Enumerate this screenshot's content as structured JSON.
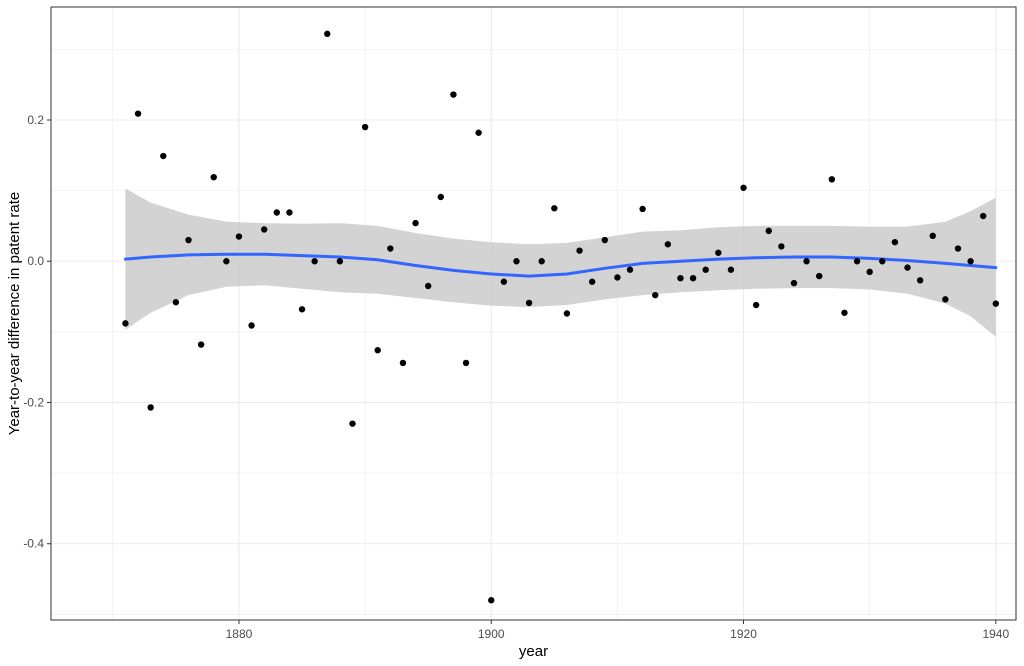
{
  "chart_data": {
    "type": "scatter",
    "title": "",
    "xlabel": "year",
    "ylabel": "Year-to-year difference in patent rate",
    "xlim": [
      1865.1,
      1941.6
    ],
    "ylim": [
      -0.508,
      0.36
    ],
    "x_ticks": [
      1880,
      1900,
      1920,
      1940
    ],
    "y_ticks": [
      -0.4,
      -0.2,
      0.0,
      0.2
    ],
    "x_tick_labels": [
      "1880",
      "1900",
      "1920",
      "1940"
    ],
    "y_tick_labels": [
      "-0.4",
      "-0.2",
      "0.0",
      "0.2"
    ],
    "grid": true,
    "legend": "none",
    "colors": {
      "points": "#000000",
      "smooth_line": "#3366ff",
      "confidence_band": "#c8c8c8",
      "grid": "#ebebeb",
      "panel_border": "#333333"
    },
    "points": {
      "x": [
        1871,
        1872,
        1873,
        1874,
        1875,
        1876,
        1877,
        1878,
        1879,
        1880,
        1881,
        1882,
        1883,
        1884,
        1885,
        1886,
        1887,
        1888,
        1889,
        1890,
        1891,
        1892,
        1893,
        1894,
        1895,
        1896,
        1897,
        1898,
        1899,
        1900,
        1901,
        1902,
        1903,
        1904,
        1905,
        1906,
        1907,
        1908,
        1909,
        1910,
        1911,
        1912,
        1913,
        1914,
        1915,
        1916,
        1917,
        1918,
        1919,
        1920,
        1921,
        1922,
        1923,
        1924,
        1925,
        1926,
        1927,
        1928,
        1929,
        1930,
        1931,
        1932,
        1933,
        1934,
        1935,
        1936,
        1937,
        1938,
        1939,
        1940
      ],
      "y": [
        -0.088,
        0.209,
        -0.207,
        0.149,
        -0.058,
        0.03,
        -0.118,
        0.119,
        0.0,
        0.035,
        -0.091,
        0.045,
        0.069,
        0.069,
        -0.068,
        0.0,
        0.322,
        0.0,
        -0.23,
        0.19,
        -0.126,
        0.018,
        -0.144,
        0.054,
        -0.035,
        0.091,
        0.236,
        -0.144,
        0.182,
        -0.48,
        -0.029,
        0.0,
        -0.059,
        0.0,
        0.075,
        -0.074,
        0.015,
        -0.029,
        0.03,
        -0.023,
        -0.012,
        0.074,
        -0.048,
        0.024,
        -0.024,
        -0.024,
        -0.012,
        0.012,
        -0.012,
        0.104,
        -0.062,
        0.043,
        0.021,
        -0.031,
        0.0,
        -0.021,
        0.116,
        -0.073,
        0.0,
        -0.015,
        0.0,
        0.027,
        -0.009,
        -0.027,
        0.036,
        -0.054,
        0.018,
        0.0,
        0.064,
        -0.06
      ]
    },
    "smooth": {
      "method": "loess",
      "x": [
        1871,
        1873,
        1876,
        1879,
        1882,
        1885,
        1888,
        1891,
        1894,
        1897,
        1900,
        1903,
        1906,
        1909,
        1912,
        1915,
        1918,
        1921,
        1924,
        1927,
        1930,
        1933,
        1936,
        1938,
        1940
      ],
      "y": [
        0.003,
        0.006,
        0.009,
        0.01,
        0.01,
        0.008,
        0.006,
        0.002,
        -0.006,
        -0.013,
        -0.018,
        -0.021,
        -0.018,
        -0.01,
        -0.003,
        0.0,
        0.003,
        0.005,
        0.006,
        0.006,
        0.004,
        0.001,
        -0.003,
        -0.006,
        -0.009
      ],
      "ci_lower": [
        -0.097,
        -0.073,
        -0.048,
        -0.036,
        -0.034,
        -0.039,
        -0.044,
        -0.046,
        -0.052,
        -0.058,
        -0.063,
        -0.065,
        -0.062,
        -0.054,
        -0.048,
        -0.044,
        -0.041,
        -0.039,
        -0.038,
        -0.038,
        -0.04,
        -0.046,
        -0.06,
        -0.078,
        -0.107
      ],
      "ci_upper": [
        0.103,
        0.083,
        0.066,
        0.056,
        0.054,
        0.053,
        0.054,
        0.05,
        0.04,
        0.032,
        0.027,
        0.024,
        0.026,
        0.034,
        0.042,
        0.044,
        0.048,
        0.05,
        0.05,
        0.05,
        0.049,
        0.049,
        0.056,
        0.071,
        0.09
      ]
    }
  }
}
